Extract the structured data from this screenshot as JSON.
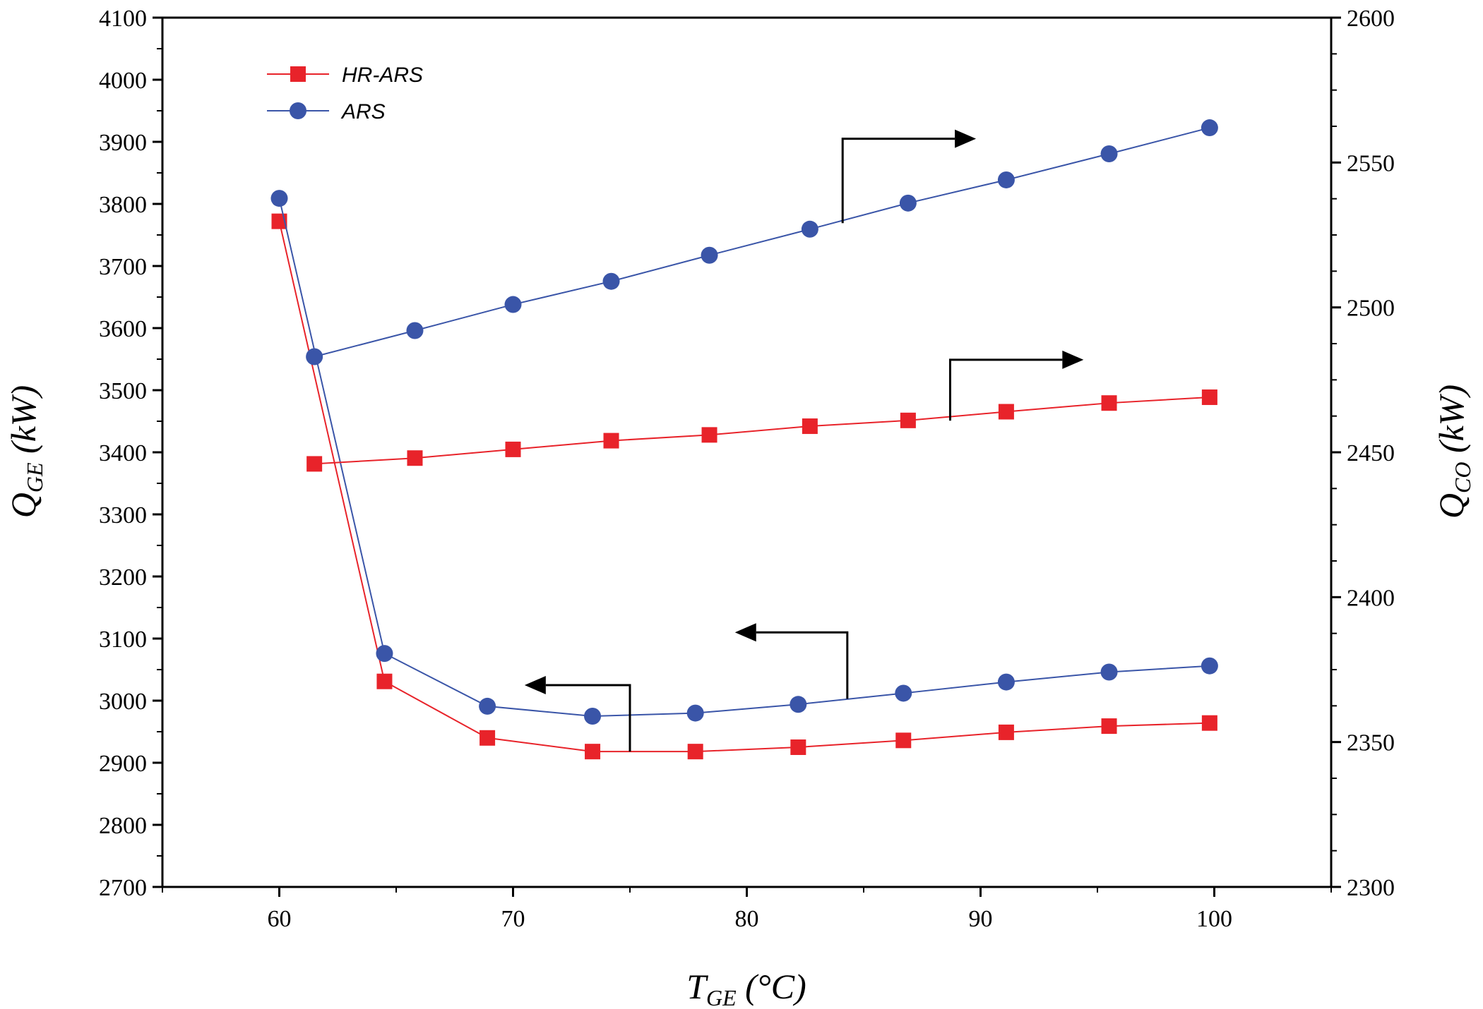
{
  "chart_data": {
    "type": "line",
    "x_axis": {
      "label_main": "T",
      "label_sub": "GE",
      "label_unit": " (°C)",
      "range": [
        55,
        105
      ],
      "ticks": [
        60,
        70,
        80,
        90,
        100
      ],
      "tick_labels": [
        "60",
        "70",
        "80",
        "90",
        "100"
      ]
    },
    "y_axis_left": {
      "label_main": "Q",
      "label_sub": "GE",
      "label_unit": " (kW)",
      "range": [
        2700,
        4100
      ],
      "ticks": [
        2700,
        2800,
        2900,
        3000,
        3100,
        3200,
        3300,
        3400,
        3500,
        3600,
        3700,
        3800,
        3900,
        4000,
        4100
      ],
      "tick_labels": [
        "2700",
        "2800",
        "2900",
        "3000",
        "3100",
        "3200",
        "3300",
        "3400",
        "3500",
        "3600",
        "3700",
        "3800",
        "3900",
        "4000",
        "4100"
      ]
    },
    "y_axis_right": {
      "label_main": "Q",
      "label_sub": "CO",
      "label_unit": " (kW)",
      "range": [
        2300,
        2600
      ],
      "ticks": [
        2300,
        2350,
        2400,
        2450,
        2500,
        2550,
        2600
      ],
      "tick_labels": [
        "2300",
        "2350",
        "2400",
        "2450",
        "2500",
        "2550",
        "2600"
      ]
    },
    "legend": {
      "position": "top-left",
      "entries": [
        {
          "name": "HR-ARS",
          "color": "#e8232a",
          "marker": "square"
        },
        {
          "name": "ARS",
          "color": "#3a55a8",
          "marker": "circle"
        }
      ]
    },
    "series": [
      {
        "name": "HR-ARS",
        "quantity": "Q_GE",
        "axis": "left",
        "color": "#e8232a",
        "marker": "square",
        "x": [
          60.0,
          64.5,
          68.9,
          73.4,
          77.8,
          82.2,
          86.7,
          91.1,
          95.5,
          99.8
        ],
        "y": [
          3772,
          3031,
          2940,
          2918,
          2918,
          2925,
          2936,
          2949,
          2959,
          2964
        ]
      },
      {
        "name": "ARS",
        "quantity": "Q_GE",
        "axis": "left",
        "color": "#3a55a8",
        "marker": "circle",
        "x": [
          60.0,
          64.5,
          68.9,
          73.4,
          77.8,
          82.2,
          86.7,
          91.1,
          95.5,
          99.8
        ],
        "y": [
          3809,
          3076,
          2991,
          2975,
          2980,
          2994,
          3012,
          3030,
          3046,
          3056
        ]
      },
      {
        "name": "HR-ARS",
        "quantity": "Q_CO",
        "axis": "right",
        "color": "#e8232a",
        "marker": "square",
        "x": [
          61.5,
          65.8,
          70.0,
          74.2,
          78.4,
          82.7,
          86.9,
          91.1,
          95.5,
          99.8
        ],
        "y": [
          2446,
          2448,
          2451,
          2454,
          2456,
          2459,
          2461,
          2464,
          2467,
          2469
        ]
      },
      {
        "name": "ARS",
        "quantity": "Q_CO",
        "axis": "right",
        "color": "#3a55a8",
        "marker": "circle",
        "x": [
          61.5,
          65.8,
          70.0,
          74.2,
          78.4,
          82.7,
          86.9,
          91.1,
          95.5,
          99.8
        ],
        "y": [
          2483,
          2492,
          2501,
          2509,
          2518,
          2527,
          2536,
          2544,
          2553,
          2562
        ]
      }
    ],
    "annotations": [
      {
        "type": "arrow",
        "direction": "right",
        "target_axis": "right",
        "near_series": "ARS Q_CO",
        "x_start": 84.1,
        "y_low": 3769,
        "y_high": 3905,
        "x_end": 88.9
      },
      {
        "type": "arrow",
        "direction": "right",
        "target_axis": "right",
        "near_series": "HR-ARS Q_CO",
        "x_start": 88.7,
        "y_low": 3451,
        "y_high": 3549,
        "x_end": 93.5
      },
      {
        "type": "arrow",
        "direction": "left",
        "target_axis": "left",
        "near_series": "ARS Q_GE",
        "x_start": 84.3,
        "y_low": 3003,
        "y_high": 3110,
        "x_end": 80.4
      },
      {
        "type": "arrow",
        "direction": "left",
        "target_axis": "left",
        "near_series": "HR-ARS Q_GE",
        "x_start": 75.0,
        "y_low": 2918,
        "y_high": 3025,
        "x_end": 71.4
      }
    ]
  }
}
